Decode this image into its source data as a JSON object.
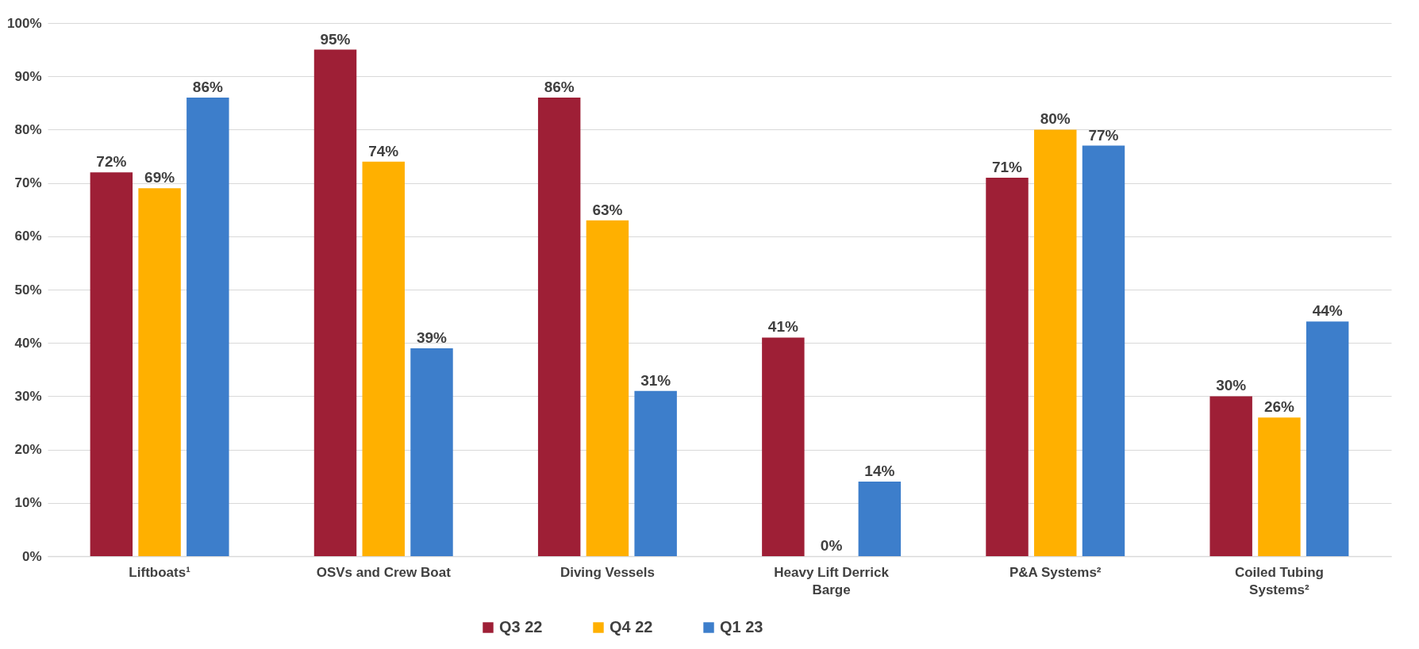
{
  "chart_data": {
    "type": "bar",
    "categories": [
      "Liftboats¹",
      "OSVs and Crew Boat",
      "Diving Vessels",
      "Heavy Lift Derrick Barge",
      "P&A Systems²",
      "Coiled Tubing Systems²"
    ],
    "series": [
      {
        "name": "Q3 22",
        "color": "#9e1f36",
        "values": [
          72,
          95,
          86,
          41,
          71,
          30
        ],
        "value_labels": [
          "72%",
          "95%",
          "86%",
          "41%",
          "71%",
          "30%"
        ]
      },
      {
        "name": "Q4 22",
        "color": "#ffb000",
        "values": [
          69,
          74,
          63,
          0,
          80,
          26
        ],
        "value_labels": [
          "69%",
          "74%",
          "63%",
          "0%",
          "80%",
          "26%"
        ]
      },
      {
        "name": "Q1 23",
        "color": "#3d7ecb",
        "values": [
          86,
          39,
          31,
          14,
          77,
          44
        ],
        "value_labels": [
          "86%",
          "39%",
          "31%",
          "14%",
          "77%",
          "44%"
        ]
      }
    ],
    "ylim": [
      0,
      100
    ],
    "yticks": [
      {
        "value": 0,
        "label": "0%"
      },
      {
        "value": 10,
        "label": "10%"
      },
      {
        "value": 20,
        "label": "20%"
      },
      {
        "value": 30,
        "label": "30%"
      },
      {
        "value": 40,
        "label": "40%"
      },
      {
        "value": 50,
        "label": "50%"
      },
      {
        "value": 60,
        "label": "60%"
      },
      {
        "value": 70,
        "label": "70%"
      },
      {
        "value": 80,
        "label": "80%"
      },
      {
        "value": 90,
        "label": "90%"
      },
      {
        "value": 100,
        "label": "100%"
      }
    ],
    "grid": "y",
    "legend": "bottom"
  }
}
